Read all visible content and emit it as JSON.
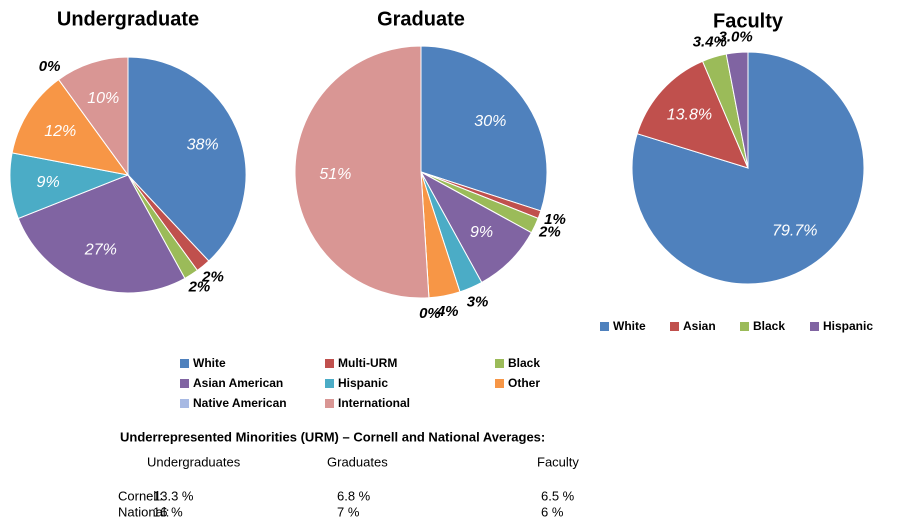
{
  "chart_data": [
    {
      "type": "pie",
      "title": "Undergraduate",
      "values": [
        38,
        2,
        2,
        27,
        9,
        12,
        0,
        10
      ],
      "value_labels": [
        "38%",
        "2%",
        "2%",
        "27%",
        "9%",
        "12%",
        "0%",
        "10%"
      ]
    },
    {
      "type": "pie",
      "title": "Graduate",
      "values": [
        30,
        1,
        2,
        9,
        3,
        4,
        0,
        51
      ],
      "value_labels": [
        "30%",
        "1%",
        "2%",
        "9%",
        "3%",
        "4%",
        "0%",
        "51%"
      ]
    },
    {
      "type": "pie",
      "title": "Faculty",
      "categories": [
        "White",
        "Asian",
        "Black",
        "Hispanic"
      ],
      "colors": [
        "#4F81BD",
        "#C0504D",
        "#9BBB59",
        "#8064A2"
      ],
      "values": [
        79.7,
        13.8,
        3.4,
        3
      ],
      "value_labels": [
        "79.7%",
        "13.8%",
        "3.4%",
        "3.0%"
      ]
    }
  ],
  "legend": {
    "entries": [
      "White",
      "Multi-URM",
      "Black",
      "Asian American",
      "Hispanic",
      "Other",
      "Native American",
      "International"
    ],
    "colors": [
      "#4F81BD",
      "#C0504D",
      "#9BBB59",
      "#8064A2",
      "#4BACC6",
      "#F79646",
      "#A7B9E3",
      "#D99694"
    ]
  },
  "urm_table": {
    "title": "Underrepresented Minorities (URM)  –  Cornell and National Averages:",
    "columns": [
      "Undergraduates",
      "Graduates",
      "Faculty"
    ],
    "rows": [
      {
        "label": "Cornell:",
        "cells": [
          "13.3 %",
          "6.8 %",
          "6.5 %"
        ]
      },
      {
        "label": "National:",
        "cells": [
          "16 %",
          "7 %",
          "6 %"
        ]
      }
    ]
  }
}
